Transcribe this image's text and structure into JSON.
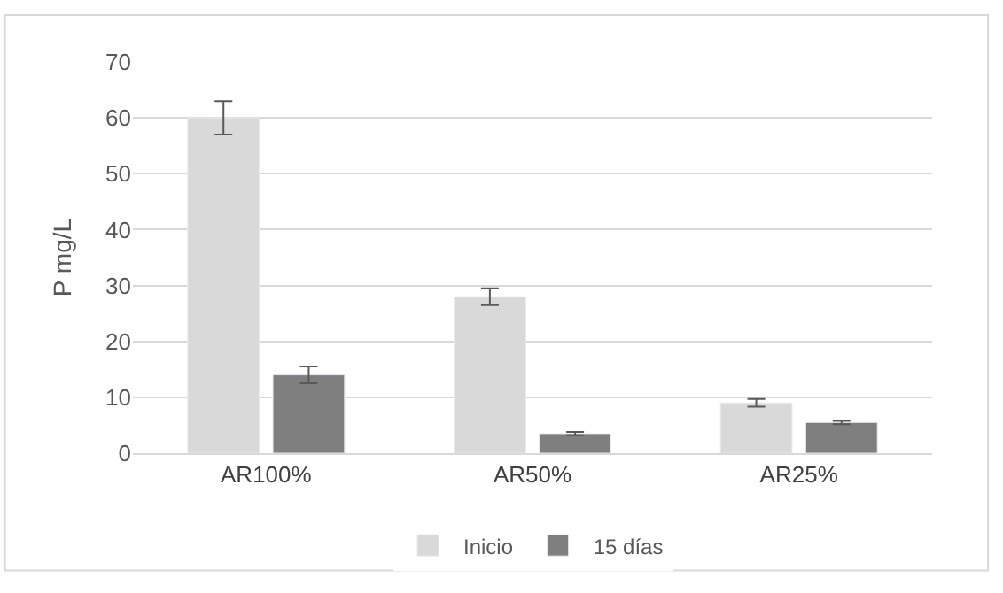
{
  "chart_data": {
    "type": "bar",
    "categories": [
      "AR100%",
      "AR50%",
      "AR25%"
    ],
    "ylabel": "P mg/L",
    "ylim": [
      0,
      70
    ],
    "yticks": [
      0,
      10,
      20,
      30,
      40,
      50,
      60,
      70
    ],
    "grid": "y",
    "legend": "bottom",
    "series": [
      {
        "name": "Inicio",
        "color": "#d9d9d9",
        "values": [
          60,
          28,
          9
        ],
        "errors": [
          3,
          1.5,
          0.7
        ]
      },
      {
        "name": "15 días",
        "color": "#7f7f7f",
        "values": [
          14,
          3.5,
          5.5
        ],
        "errors": [
          1.5,
          0.3,
          0.3
        ]
      }
    ]
  }
}
